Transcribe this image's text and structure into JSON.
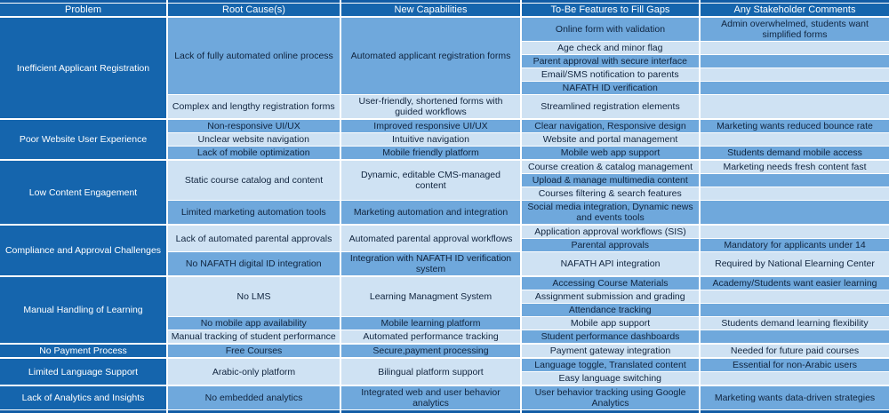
{
  "palette": {
    "dark_blue": "#1565ad",
    "top_strip_blue": "#115ca5",
    "medium_row_blue": "#6fa8dc",
    "light_row_blue": "#cfe2f3",
    "grid_border": "#ffffff",
    "header_text": "#ffffff",
    "cell_text": "#10243e"
  },
  "header": {
    "columns": [
      "Problem",
      "Root Cause(s)",
      "New Capabilities",
      "To-Be Features to Fill Gaps",
      "Any Stakeholder Comments"
    ]
  },
  "groups": [
    {
      "problem": "Inefficient Applicant Registration",
      "causes": [
        {
          "root_cause": "Lack of fully automated online process",
          "new_capability": "Automated applicant registration forms",
          "rows": [
            {
              "feature": "Online form with validation",
              "comment": "Admin overwhelmed, students want simplified forms"
            },
            {
              "feature": "Age check and minor flag",
              "comment": ""
            },
            {
              "feature": "Parent approval with secure interface",
              "comment": ""
            },
            {
              "feature": "Email/SMS notification to parents",
              "comment": ""
            },
            {
              "feature": "NAFATH ID verification",
              "comment": ""
            }
          ]
        },
        {
          "root_cause": "Complex and lengthy registration forms",
          "new_capability": "User-friendly, shortened forms with guided workflows",
          "rows": [
            {
              "feature": "Streamlined registration elements",
              "comment": ""
            }
          ]
        }
      ]
    },
    {
      "problem": "Poor Website User Experience",
      "causes": [
        {
          "root_cause": "Non-responsive UI/UX",
          "new_capability": "Improved responsive UI/UX",
          "rows": [
            {
              "feature": "Clear navigation, Responsive design",
              "comment": "Marketing wants reduced bounce rate"
            }
          ]
        },
        {
          "root_cause": "Unclear website navigation",
          "new_capability": "Intuitive navigation",
          "rows": [
            {
              "feature": "Website and portal management",
              "comment": ""
            }
          ]
        },
        {
          "root_cause": "Lack of mobile optimization",
          "new_capability": "Mobile friendly platform",
          "rows": [
            {
              "feature": "Mobile web app support",
              "comment": "Students demand mobile access"
            }
          ]
        }
      ]
    },
    {
      "problem": "Low Content Engagement",
      "causes": [
        {
          "root_cause": "Static course catalog and content",
          "new_capability": "Dynamic, editable CMS-managed content",
          "rows": [
            {
              "feature": "Course creation & catalog management",
              "comment": "Marketing needs fresh content fast"
            },
            {
              "feature": "Upload & manage multimedia content",
              "comment": ""
            },
            {
              "feature": "Courses filtering & search features",
              "comment": ""
            }
          ]
        },
        {
          "root_cause": "Limited marketing automation tools",
          "new_capability": "Marketing automation and integration",
          "rows": [
            {
              "feature": "Social media integration, Dynamic news and events tools",
              "comment": ""
            }
          ]
        }
      ]
    },
    {
      "problem": "Compliance and Approval Challenges",
      "causes": [
        {
          "root_cause": "Lack of automated parental approvals",
          "new_capability": "Automated parental approval workflows",
          "rows": [
            {
              "feature": "Application approval workflows (SIS)",
              "comment": ""
            },
            {
              "feature": "Parental approvals",
              "comment": "Mandatory for applicants under 14"
            }
          ]
        },
        {
          "root_cause": "No NAFATH digital ID integration",
          "new_capability": "Integration with NAFATH ID verification system",
          "rows": [
            {
              "feature": "NAFATH API integration",
              "comment": "Required by National Elearning Center"
            }
          ]
        }
      ]
    },
    {
      "problem": "Manual Handling of Learning",
      "causes": [
        {
          "root_cause": "No LMS",
          "new_capability": "Learning Managment System",
          "rows": [
            {
              "feature": "Accessing Course Materials",
              "comment": "Academy/Students want easier learning"
            },
            {
              "feature": "Assignment submission and grading",
              "comment": ""
            },
            {
              "feature": "Attendance tracking",
              "comment": ""
            }
          ]
        },
        {
          "root_cause": "No mobile app availability",
          "new_capability": "Mobile learning platform",
          "rows": [
            {
              "feature": "Mobile app support",
              "comment": "Students demand learning flexibility"
            }
          ]
        },
        {
          "root_cause": "Manual tracking of student performance",
          "new_capability": "Automated performance tracking",
          "rows": [
            {
              "feature": "Student performance dashboards",
              "comment": ""
            }
          ]
        }
      ]
    },
    {
      "problem": "No Payment Process",
      "causes": [
        {
          "root_cause": "Free Courses",
          "new_capability": "Secure,payment processing",
          "rows": [
            {
              "feature": "Payment gateway integration",
              "comment": "Needed for future paid courses"
            }
          ]
        }
      ]
    },
    {
      "problem": "Limited Language Support",
      "causes": [
        {
          "root_cause": "Arabic-only platform",
          "new_capability": "Bilingual platform support",
          "rows": [
            {
              "feature": "Language toggle, Translated content",
              "comment": "Essential for non-Arabic users"
            },
            {
              "feature": "Easy language switching",
              "comment": ""
            }
          ]
        }
      ]
    },
    {
      "problem": "Lack of Analytics and Insights",
      "causes": [
        {
          "root_cause": "No embedded analytics",
          "new_capability": "Integrated web and user behavior analytics",
          "rows": [
            {
              "feature": "User behavior tracking using Google Analytics",
              "comment": "Marketing wants data-driven strategies"
            }
          ]
        }
      ]
    }
  ]
}
